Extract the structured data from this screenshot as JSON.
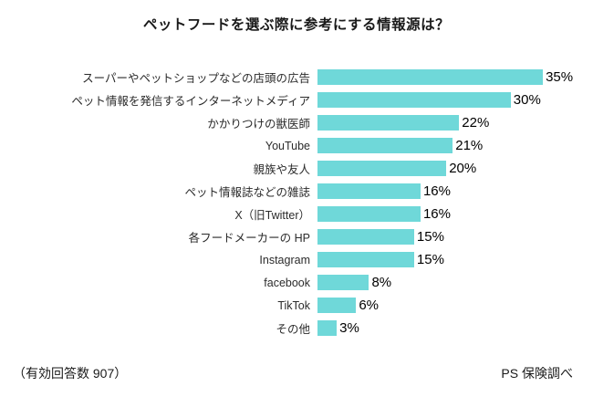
{
  "chart": {
    "title": "ペットフードを選ぶ際に参考にする情報源は？",
    "footer_left": "（有効回答数 907）",
    "footer_right": "PS 保険調べ",
    "bar_color": "#6fd8d9"
  },
  "chart_data": {
    "type": "bar",
    "orientation": "horizontal",
    "title": "ペットフードを選ぶ際に参考にする情報源は？",
    "categories": [
      "スーパーやペットショップなどの店頭の広告",
      "ペット情報を発信するインターネットメディア",
      "かかりつけの獣医師",
      "YouTube",
      "親族や友人",
      "ペット情報誌などの雑誌",
      "X（旧Twitter）",
      "各フードメーカーの HP",
      "Instagram",
      "facebook",
      "TikTok",
      "その他"
    ],
    "values": [
      35,
      30,
      22,
      21,
      20,
      16,
      16,
      15,
      15,
      8,
      6,
      3
    ],
    "value_labels": [
      "35%",
      "30%",
      "22%",
      "21%",
      "20%",
      "16%",
      "16%",
      "15%",
      "15%",
      "8%",
      "6%",
      "3%"
    ],
    "axis_max": 35,
    "xlabel": "",
    "ylabel": "",
    "grid": false,
    "legend": false
  }
}
